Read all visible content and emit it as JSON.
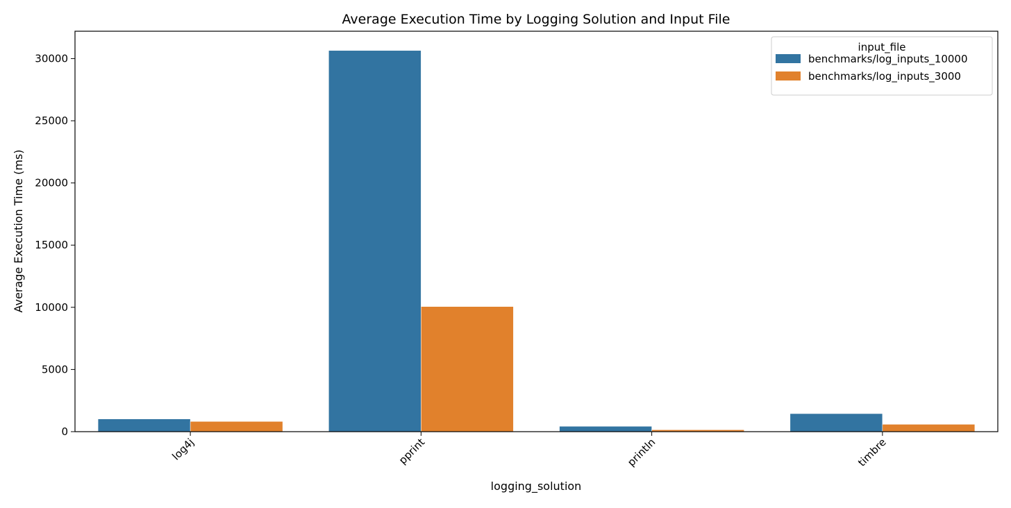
{
  "chart_data": {
    "type": "bar",
    "title": "Average Execution Time by Logging Solution and Input File",
    "xlabel": "logging_solution",
    "ylabel": "Average Execution Time (ms)",
    "categories": [
      "log4j",
      "pprint",
      "println",
      "timbre"
    ],
    "series": [
      {
        "name": "benchmarks/log_inputs_10000",
        "color": "#3274a1",
        "values": [
          1020,
          30650,
          430,
          1450
        ]
      },
      {
        "name": "benchmarks/log_inputs_3000",
        "color": "#e1812c",
        "values": [
          820,
          10060,
          150,
          590
        ]
      }
    ],
    "ylim": [
      0,
      32200
    ],
    "yticks": [
      0,
      5000,
      10000,
      15000,
      20000,
      25000,
      30000
    ],
    "ytick_labels": [
      "0",
      "5000",
      "10000",
      "15000",
      "20000",
      "25000",
      "30000"
    ],
    "legend": {
      "title": "input_file",
      "placement": "top-right"
    },
    "grid": false,
    "xtick_rotation": 45
  }
}
